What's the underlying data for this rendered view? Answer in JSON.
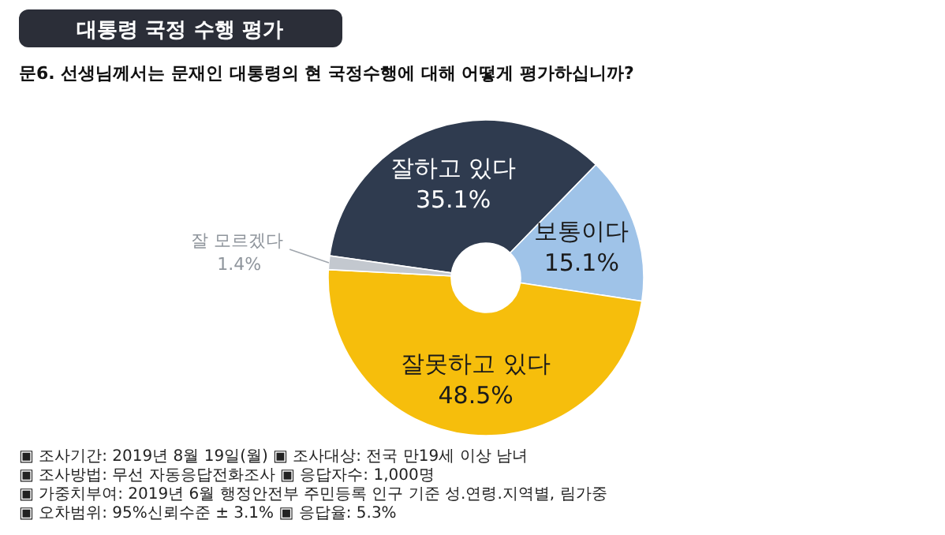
{
  "chart_data": {
    "type": "donut",
    "title": "대통령 국정 수행 평가",
    "subtitle": "문6. 선생님께서는 문재인 대통령의 현 국정수행에 대해 어떻게 평가하십니까?",
    "categories": [
      "잘하고 있다",
      "보통이다",
      "잘못하고 있다",
      "잘 모르겠다"
    ],
    "values": [
      35.1,
      15.1,
      48.5,
      1.4
    ],
    "value_labels": [
      "35.1%",
      "15.1%",
      "48.5%",
      "1.4%"
    ],
    "colors": [
      "#2f3b4f",
      "#9fc3e8",
      "#f6be0c",
      "#c3c8cf"
    ],
    "annotations": [
      "▣ 조사기간: 2019년 8월 19일(월) ▣ 조사대상: 전국 만19세 이상 남녀",
      "▣ 조사방법: 무선 자동응답전화조사 ▣ 응답자수: 1,000명",
      "▣ 가중치부여: 2019년 6월 행정안전부 주민등록 인구 기준 성.연령.지역별, 림가중",
      "▣ 오차범위: 95%신뢰수준 ± 3.1% ▣ 응답율: 5.3%"
    ]
  }
}
